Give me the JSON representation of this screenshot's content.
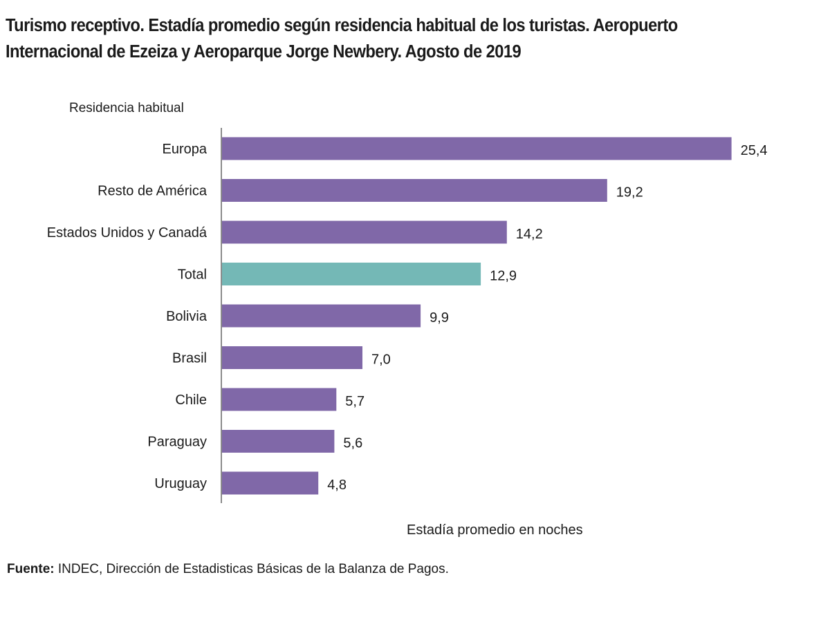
{
  "title": "Turismo receptivo. Estadía promedio según residencia habitual de los turistas. Aeropuerto Internacional de Ezeiza y Aeroparque Jorge Newbery. Agosto de 2019",
  "source_label": "Fuente:",
  "source_text": " INDEC, Dirección de Estadisticas Básicas de la Balanza de Pagos.",
  "colors": {
    "bar": "#8068a8",
    "total_bar": "#74b8b6",
    "axis": "#8a8a8a"
  },
  "chart_data": {
    "type": "bar",
    "orientation": "horizontal",
    "title": "Turismo receptivo. Estadía promedio según residencia habitual de los turistas. Aeropuerto Internacional de Ezeiza y Aeroparque Jorge Newbery. Agosto de 2019",
    "ylabel": "Residencia habitual",
    "xlabel": "Estadía promedio en noches",
    "categories": [
      "Europa",
      "Resto de América",
      "Estados Unidos y Canadá",
      "Total",
      "Bolivia",
      "Brasil",
      "Chile",
      "Paraguay",
      "Uruguay"
    ],
    "values": [
      25.4,
      19.2,
      14.2,
      12.9,
      9.9,
      7.0,
      5.7,
      5.6,
      4.8
    ],
    "value_labels": [
      "25,4",
      "19,2",
      "14,2",
      "12,9",
      "9,9",
      "7,0",
      "5,7",
      "5,6",
      "4,8"
    ],
    "highlight": "Total",
    "grid": false,
    "legend": "none"
  }
}
